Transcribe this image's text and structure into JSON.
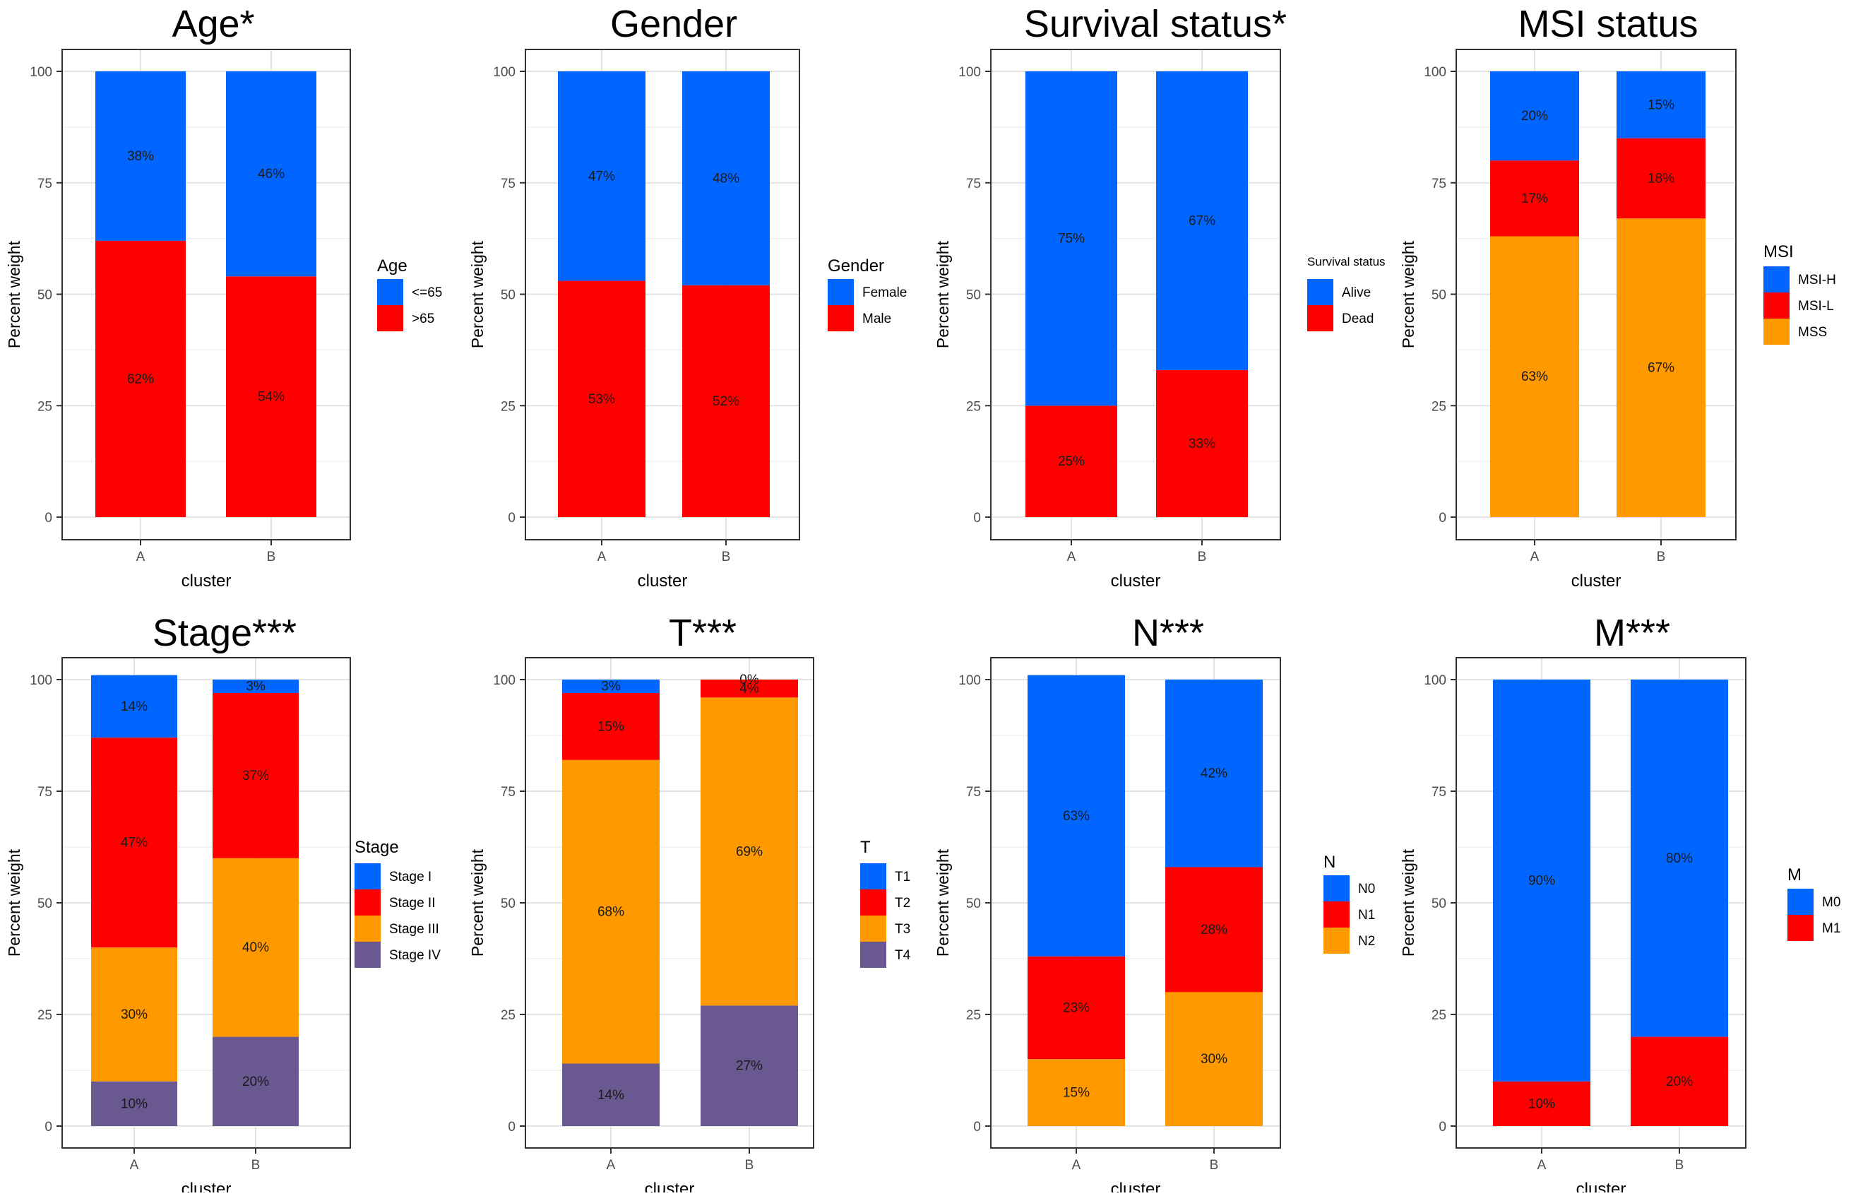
{
  "chart_data": [
    {
      "type": "bar",
      "title": "Age*",
      "xlabel": "cluster",
      "ylabel": "Percent weight",
      "ylim": [
        0,
        100
      ],
      "yticks": [
        "0",
        "25",
        "50",
        "75",
        "100"
      ],
      "categories": [
        "A",
        "B"
      ],
      "legend_title": "Age",
      "series": [
        {
          "name": ">65",
          "color": "#FF0000",
          "values": [
            62,
            54
          ],
          "labels": [
            "62%",
            "54%"
          ]
        },
        {
          "name": "<=65",
          "color": "#0066FF",
          "values": [
            38,
            46
          ],
          "labels": [
            "38%",
            "46%"
          ]
        }
      ],
      "legend_order": [
        "<=65",
        ">65"
      ]
    },
    {
      "type": "bar",
      "title": "Gender",
      "xlabel": "cluster",
      "ylabel": "Percent weight",
      "ylim": [
        0,
        100
      ],
      "yticks": [
        "0",
        "25",
        "50",
        "75",
        "100"
      ],
      "categories": [
        "A",
        "B"
      ],
      "legend_title": "Gender",
      "series": [
        {
          "name": "Male",
          "color": "#FF0000",
          "values": [
            53,
            52
          ],
          "labels": [
            "53%",
            "52%"
          ]
        },
        {
          "name": "Female",
          "color": "#0066FF",
          "values": [
            47,
            48
          ],
          "labels": [
            "47%",
            "48%"
          ]
        }
      ],
      "legend_order": [
        "Female",
        "Male"
      ]
    },
    {
      "type": "bar",
      "title": "Survival status*",
      "xlabel": "cluster",
      "ylabel": "Percent weight",
      "ylim": [
        0,
        100
      ],
      "yticks": [
        "0",
        "25",
        "50",
        "75",
        "100"
      ],
      "categories": [
        "A",
        "B"
      ],
      "legend_title": "Survival status",
      "series": [
        {
          "name": "Dead",
          "color": "#FF0000",
          "values": [
            25,
            33
          ],
          "labels": [
            "25%",
            "33%"
          ]
        },
        {
          "name": "Alive",
          "color": "#0066FF",
          "values": [
            75,
            67
          ],
          "labels": [
            "75%",
            "67%"
          ]
        }
      ],
      "legend_order": [
        "Alive",
        "Dead"
      ]
    },
    {
      "type": "bar",
      "title": "MSI status",
      "xlabel": "cluster",
      "ylabel": "Percent weight",
      "ylim": [
        0,
        100
      ],
      "yticks": [
        "0",
        "25",
        "50",
        "75",
        "100"
      ],
      "categories": [
        "A",
        "B"
      ],
      "legend_title": "MSI",
      "series": [
        {
          "name": "MSS",
          "color": "#FF9900",
          "values": [
            63,
            67
          ],
          "labels": [
            "63%",
            "67%"
          ]
        },
        {
          "name": "MSI-L",
          "color": "#FF0000",
          "values": [
            17,
            18
          ],
          "labels": [
            "17%",
            "18%"
          ]
        },
        {
          "name": "MSI-H",
          "color": "#0066FF",
          "values": [
            20,
            15
          ],
          "labels": [
            "20%",
            "15%"
          ]
        }
      ],
      "legend_order": [
        "MSI-H",
        "MSI-L",
        "MSS"
      ]
    },
    {
      "type": "bar",
      "title": "Stage***",
      "xlabel": "cluster",
      "ylabel": "Percent weight",
      "ylim": [
        0,
        100
      ],
      "yticks": [
        "0",
        "25",
        "50",
        "75",
        "100"
      ],
      "categories": [
        "A",
        "B"
      ],
      "legend_title": "Stage",
      "series": [
        {
          "name": "Stage IV",
          "color": "#6A5890",
          "values": [
            10,
            20
          ],
          "labels": [
            "10%",
            "20%"
          ]
        },
        {
          "name": "Stage III",
          "color": "#FF9900",
          "values": [
            30,
            40
          ],
          "labels": [
            "30%",
            "40%"
          ]
        },
        {
          "name": "Stage II",
          "color": "#FF0000",
          "values": [
            47,
            37
          ],
          "labels": [
            "47%",
            "37%"
          ]
        },
        {
          "name": "Stage I",
          "color": "#0066FF",
          "values": [
            14,
            3
          ],
          "labels": [
            "14%",
            "3%"
          ]
        }
      ],
      "legend_order": [
        "Stage I",
        "Stage II",
        "Stage III",
        "Stage IV"
      ]
    },
    {
      "type": "bar",
      "title": "T***",
      "xlabel": "cluster",
      "ylabel": "Percent weight",
      "ylim": [
        0,
        100
      ],
      "yticks": [
        "0",
        "25",
        "50",
        "75",
        "100"
      ],
      "categories": [
        "A",
        "B"
      ],
      "legend_title": "T",
      "series": [
        {
          "name": "T4",
          "color": "#6A5890",
          "values": [
            14,
            27
          ],
          "labels": [
            "14%",
            "27%"
          ]
        },
        {
          "name": "T3",
          "color": "#FF9900",
          "values": [
            68,
            69
          ],
          "labels": [
            "68%",
            "69%"
          ]
        },
        {
          "name": "T2",
          "color": "#FF0000",
          "values": [
            15,
            4
          ],
          "labels": [
            "15%",
            "4%"
          ]
        },
        {
          "name": "T1",
          "color": "#0066FF",
          "values": [
            3,
            0
          ],
          "labels": [
            "3%",
            "0%"
          ]
        }
      ],
      "legend_order": [
        "T1",
        "T2",
        "T3",
        "T4"
      ]
    },
    {
      "type": "bar",
      "title": "N***",
      "xlabel": "cluster",
      "ylabel": "Percent weight",
      "ylim": [
        0,
        100
      ],
      "yticks": [
        "0",
        "25",
        "50",
        "75",
        "100"
      ],
      "categories": [
        "A",
        "B"
      ],
      "legend_title": "N",
      "series": [
        {
          "name": "N2",
          "color": "#FF9900",
          "values": [
            15,
            30
          ],
          "labels": [
            "15%",
            "30%"
          ]
        },
        {
          "name": "N1",
          "color": "#FF0000",
          "values": [
            23,
            28
          ],
          "labels": [
            "23%",
            "28%"
          ]
        },
        {
          "name": "N0",
          "color": "#0066FF",
          "values": [
            63,
            42
          ],
          "labels": [
            "63%",
            "42%"
          ]
        }
      ],
      "legend_order": [
        "N0",
        "N1",
        "N2"
      ]
    },
    {
      "type": "bar",
      "title": "M***",
      "xlabel": "cluster",
      "ylabel": "Percent weight",
      "ylim": [
        0,
        100
      ],
      "yticks": [
        "0",
        "25",
        "50",
        "75",
        "100"
      ],
      "categories": [
        "A",
        "B"
      ],
      "legend_title": "M",
      "series": [
        {
          "name": "M1",
          "color": "#FF0000",
          "values": [
            10,
            20
          ],
          "labels": [
            "10%",
            "20%"
          ]
        },
        {
          "name": "M0",
          "color": "#0066FF",
          "values": [
            90,
            80
          ],
          "labels": [
            "90%",
            "80%"
          ]
        }
      ],
      "legend_order": [
        "M0",
        "M1"
      ]
    }
  ]
}
